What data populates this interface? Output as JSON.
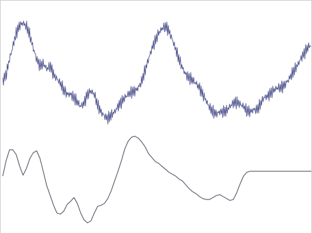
{
  "chart_data": [
    {
      "type": "line",
      "grid": false,
      "legend": "none",
      "color": "#4a4f8a",
      "noisy": true,
      "x": [
        0,
        5,
        10,
        15,
        20,
        25,
        30,
        35,
        40,
        45,
        50,
        55,
        60,
        65,
        70,
        75,
        80,
        85,
        90,
        95,
        100,
        105,
        110,
        115,
        120,
        125,
        130,
        135,
        140,
        145,
        150,
        155,
        160,
        165,
        170,
        175,
        180,
        185,
        190,
        195,
        200,
        205,
        210,
        215,
        220,
        225,
        230,
        235,
        240,
        245,
        250,
        255,
        260,
        265,
        270,
        275,
        280,
        285,
        290,
        295,
        300,
        305,
        310,
        315,
        320,
        325,
        330,
        335,
        340,
        345,
        350,
        355,
        360,
        365,
        370,
        375,
        380,
        385,
        390,
        395,
        400,
        405,
        410,
        415,
        420,
        425,
        430,
        435,
        440,
        445,
        450,
        455
      ],
      "y": [
        0.36,
        0.42,
        0.56,
        0.68,
        0.8,
        0.87,
        0.89,
        0.86,
        0.78,
        0.66,
        0.56,
        0.5,
        0.52,
        0.47,
        0.5,
        0.42,
        0.38,
        0.34,
        0.28,
        0.24,
        0.24,
        0.21,
        0.17,
        0.13,
        0.16,
        0.24,
        0.27,
        0.24,
        0.14,
        0.08,
        0.04,
        0.02,
        0.05,
        0.08,
        0.13,
        0.17,
        0.21,
        0.24,
        0.26,
        0.27,
        0.3,
        0.36,
        0.46,
        0.56,
        0.66,
        0.73,
        0.8,
        0.84,
        0.86,
        0.82,
        0.74,
        0.65,
        0.56,
        0.48,
        0.42,
        0.39,
        0.37,
        0.34,
        0.3,
        0.24,
        0.18,
        0.12,
        0.08,
        0.06,
        0.08,
        0.08,
        0.09,
        0.13,
        0.16,
        0.17,
        0.15,
        0.13,
        0.09,
        0.08,
        0.1,
        0.1,
        0.15,
        0.21,
        0.22,
        0.25,
        0.28,
        0.3,
        0.3,
        0.32,
        0.36,
        0.41,
        0.46,
        0.51,
        0.57,
        0.62,
        0.67,
        0.69
      ]
    },
    {
      "type": "line",
      "grid": false,
      "legend": "none",
      "color": "#5a5a6a",
      "noisy": false,
      "x": [
        0,
        5,
        10,
        15,
        20,
        25,
        30,
        35,
        40,
        45,
        50,
        55,
        60,
        65,
        70,
        75,
        80,
        85,
        90,
        95,
        100,
        105,
        110,
        115,
        120,
        125,
        130,
        135,
        140,
        145,
        150,
        155,
        160,
        165,
        170,
        175,
        180,
        185,
        190,
        195,
        200,
        205,
        210,
        215,
        220,
        225,
        230,
        235,
        240,
        245,
        250,
        255,
        260,
        265,
        270,
        275,
        280,
        285,
        290,
        295,
        300,
        305,
        310,
        315,
        320,
        325,
        330,
        335,
        340,
        345,
        350,
        355,
        360,
        365,
        370,
        375,
        380,
        385,
        390,
        395,
        400,
        405,
        410,
        415,
        420,
        425,
        430,
        435,
        440,
        445,
        450,
        455
      ],
      "y": [
        0.5,
        0.66,
        0.77,
        0.77,
        0.72,
        0.6,
        0.51,
        0.58,
        0.68,
        0.74,
        0.76,
        0.68,
        0.54,
        0.4,
        0.3,
        0.2,
        0.12,
        0.11,
        0.14,
        0.21,
        0.24,
        0.28,
        0.22,
        0.12,
        0.05,
        0.02,
        0.04,
        0.12,
        0.19,
        0.2,
        0.22,
        0.27,
        0.35,
        0.45,
        0.55,
        0.66,
        0.78,
        0.86,
        0.9,
        0.91,
        0.89,
        0.85,
        0.8,
        0.73,
        0.69,
        0.65,
        0.63,
        0.6,
        0.57,
        0.54,
        0.52,
        0.5,
        0.47,
        0.45,
        0.41,
        0.37,
        0.34,
        0.32,
        0.29,
        0.27,
        0.26,
        0.26,
        0.28,
        0.3,
        0.31,
        0.29,
        0.27,
        0.25,
        0.26,
        0.33,
        0.42,
        0.5,
        0.54,
        0.55,
        0.55,
        0.55,
        0.55,
        0.55,
        0.55,
        0.55,
        0.55,
        0.55,
        0.55,
        0.55,
        0.55,
        0.55,
        0.55,
        0.55,
        0.55,
        0.55,
        0.55,
        0.55
      ]
    }
  ]
}
